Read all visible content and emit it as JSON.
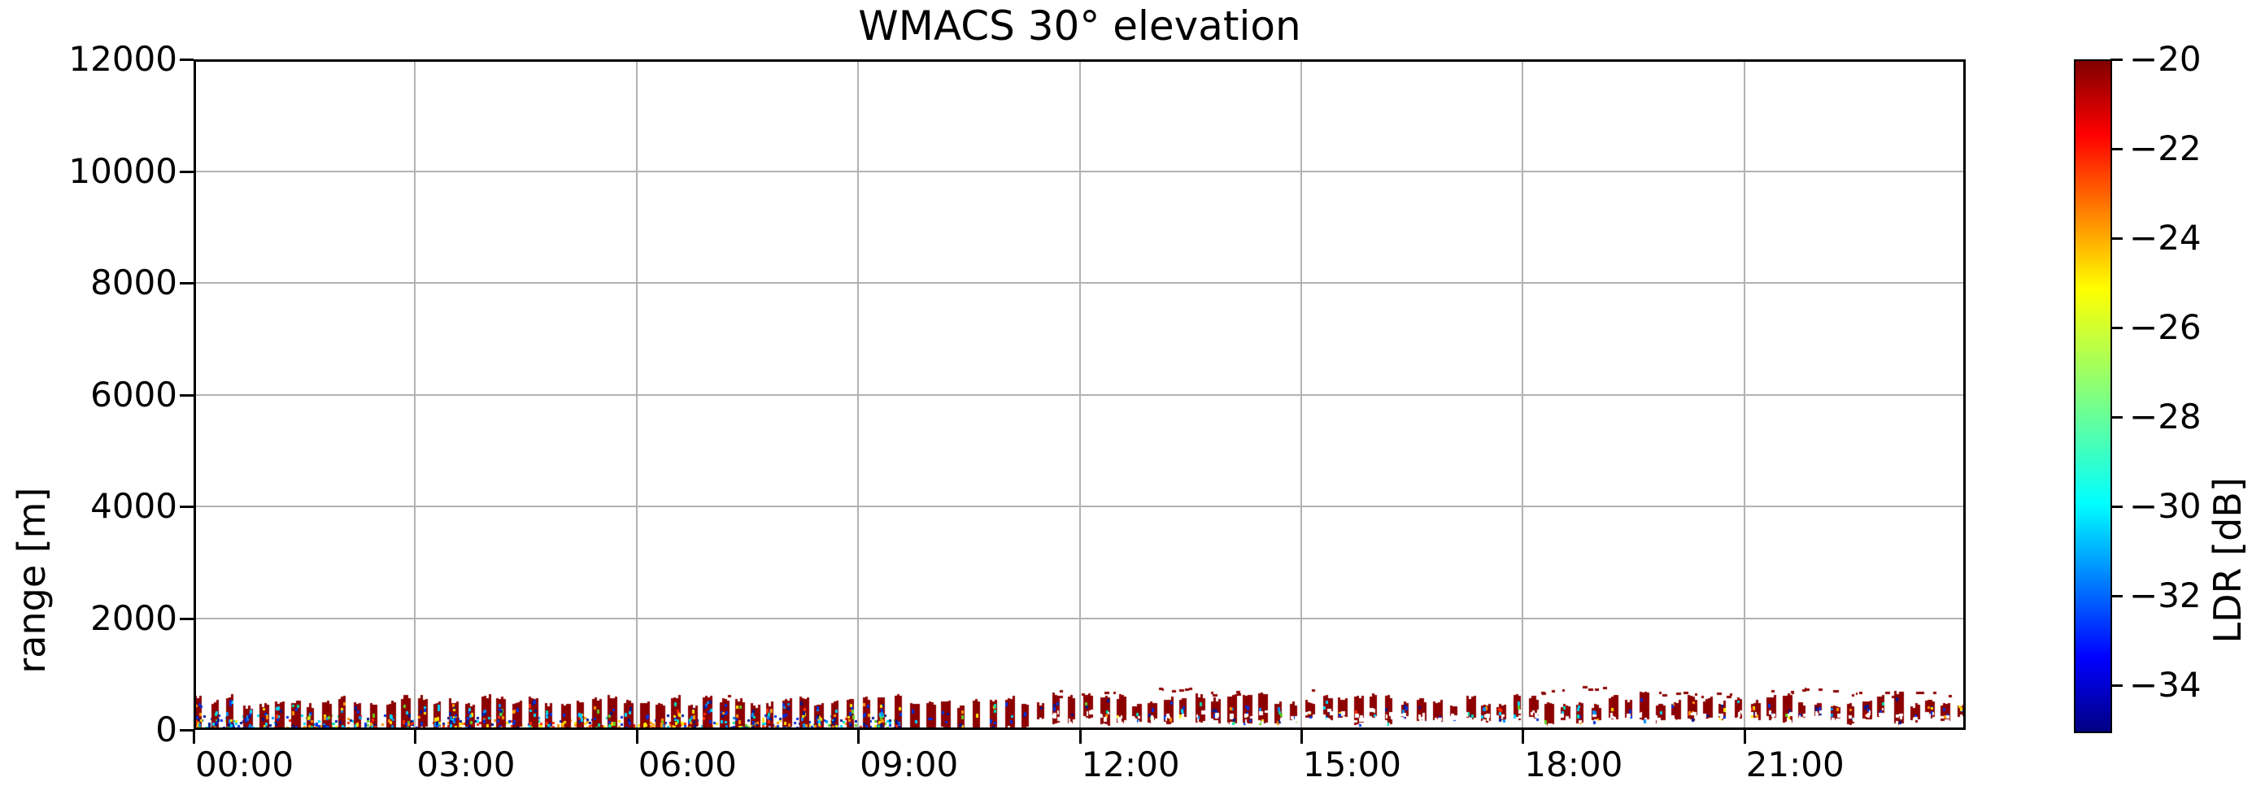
{
  "figure": {
    "background": "#ffffff",
    "text_color": "#000000",
    "grid_color": "#b2b2b2"
  },
  "chart_data": {
    "type": "heatmap",
    "title": "WMACS 30° elevation",
    "xlabel": "",
    "ylabel": "range [m]",
    "x_range_hours": [
      0,
      24
    ],
    "x_ticks": [
      {
        "h": 0,
        "label": "00:00"
      },
      {
        "h": 3,
        "label": "03:00"
      },
      {
        "h": 6,
        "label": "06:00"
      },
      {
        "h": 9,
        "label": "09:00"
      },
      {
        "h": 12,
        "label": "12:00"
      },
      {
        "h": 15,
        "label": "15:00"
      },
      {
        "h": 18,
        "label": "18:00"
      },
      {
        "h": 21,
        "label": "21:00"
      }
    ],
    "ylim": [
      0,
      12000
    ],
    "y_ticks": [
      {
        "v": 0,
        "label": "0"
      },
      {
        "v": 2000,
        "label": "2000"
      },
      {
        "v": 4000,
        "label": "4000"
      },
      {
        "v": 6000,
        "label": "6000"
      },
      {
        "v": 8000,
        "label": "8000"
      },
      {
        "v": 10000,
        "label": "10000"
      },
      {
        "v": 12000,
        "label": "12000"
      }
    ],
    "grid": true,
    "colorbar": {
      "label": "LDR [dB]",
      "vmin": -35,
      "vmax": -20,
      "ticks": [
        {
          "v": -20,
          "label": "−20"
        },
        {
          "v": -22,
          "label": "−22"
        },
        {
          "v": -24,
          "label": "−24"
        },
        {
          "v": -26,
          "label": "−26"
        },
        {
          "v": -28,
          "label": "−28"
        },
        {
          "v": -30,
          "label": "−30"
        },
        {
          "v": -32,
          "label": "−32"
        },
        {
          "v": -34,
          "label": "−34"
        }
      ],
      "colormap": "jet",
      "gradient_stops": [
        [
          "#000083",
          0.0
        ],
        [
          "#0000ff",
          0.11
        ],
        [
          "#00ffff",
          0.34
        ],
        [
          "#80ff80",
          0.5
        ],
        [
          "#ffff00",
          0.66
        ],
        [
          "#ff0000",
          0.89
        ],
        [
          "#800000",
          1.0
        ]
      ]
    },
    "data_pattern": {
      "description": "Periodic vertical scan stripes of high LDR (~-20 dB, dark red) confined below ~700 m for the whole day; before ~09:30 stripes reach the ground with mixed low-LDR (blue/cyan/yellow) speckle below ~250 m, after ~11:20 stripes float between ~100 and ~600 m with sparse dark-red specks up to ~800 m",
      "stripe_period_min": 12.9,
      "stripe_width_min": 6.2,
      "stripe_color": "#8c0000",
      "stray_dot_color": "#8c0000",
      "seed": 1337,
      "segments": [
        {
          "t": [
            0.0,
            9.6
          ],
          "top_m": [
            420,
            620
          ],
          "bottom_m": [
            0,
            40
          ],
          "band": true,
          "speckle_n": [
            7,
            16
          ],
          "eroded": false
        },
        {
          "t": [
            9.6,
            11.3
          ],
          "top_m": [
            400,
            600
          ],
          "bottom_m": [
            0,
            90
          ],
          "band": false,
          "speckle_n": [
            2,
            7
          ],
          "eroded": false
        },
        {
          "t": [
            11.3,
            24.0
          ],
          "top_m": [
            430,
            660
          ],
          "bottom_m": [
            90,
            240
          ],
          "band": false,
          "speckle_n": [
            1,
            5
          ],
          "eroded": true
        }
      ],
      "ground_band": {
        "t": [
          0.0,
          9.6
        ],
        "max_m": 230,
        "density": 0.38,
        "warm_window_h": [
          2.5,
          7.0
        ]
      },
      "speckle_colors": [
        [
          "#001890",
          3
        ],
        [
          "#0030e0",
          4
        ],
        [
          "#0090ff",
          2
        ],
        [
          "#00d8ff",
          2
        ],
        [
          "#00e0b0",
          1
        ],
        [
          "#60d020",
          1
        ],
        [
          "#ffe800",
          2
        ],
        [
          "#ff9800",
          2
        ],
        [
          "#ff3000",
          1
        ]
      ],
      "stray_windows": [
        {
          "t": [
            11.5,
            14.3
          ],
          "range_m": [
            600,
            780
          ]
        },
        {
          "t": [
            17.7,
            23.9
          ],
          "range_m": [
            600,
            780
          ]
        }
      ],
      "stray_base_p": 0.09
    }
  }
}
